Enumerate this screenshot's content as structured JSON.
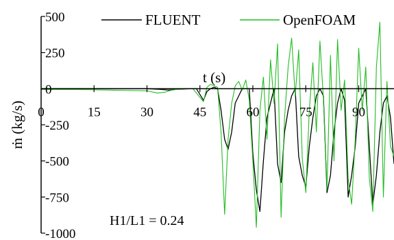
{
  "chart_data": {
    "type": "line",
    "title": "",
    "xlabel": "t (s)",
    "ylabel": "ṁ (kg/s)",
    "xlim": [
      0,
      100
    ],
    "ylim": [
      -1000,
      500
    ],
    "x_ticks": [
      0,
      15,
      30,
      45,
      60,
      75,
      90
    ],
    "x_tick_labels": [
      "0",
      "15",
      "30",
      "45",
      "60",
      "75",
      "90"
    ],
    "y_ticks": [
      500,
      250,
      0,
      -250,
      -500,
      -750,
      -1000
    ],
    "y_tick_labels": [
      "500",
      "250",
      "0",
      "-250",
      "-500",
      "-750",
      "-1000"
    ],
    "grid": false,
    "legend_position": "top",
    "annotation": "H1/L1 = 0.24",
    "series": [
      {
        "name": "FLUENT",
        "color": "#000000",
        "x": [
          0,
          10,
          20,
          30,
          34,
          36,
          38,
          42,
          44,
          45,
          46,
          47,
          48,
          49,
          50,
          51,
          52,
          53,
          54,
          55,
          56,
          57,
          58,
          59,
          60,
          61,
          62,
          63,
          64,
          65,
          66,
          67,
          68,
          69,
          70,
          71,
          72,
          73,
          74,
          75,
          76,
          77,
          78,
          79,
          80,
          81,
          82,
          83,
          84,
          85,
          86,
          87,
          88,
          89,
          90,
          91,
          92,
          93,
          94,
          95,
          96,
          97,
          98,
          99,
          100
        ],
        "y": [
          0,
          0,
          0,
          0,
          -5,
          -10,
          -5,
          0,
          0,
          -40,
          -80,
          -20,
          0,
          10,
          0,
          -150,
          -350,
          -420,
          -300,
          -100,
          -50,
          0,
          0,
          0,
          -450,
          -700,
          -850,
          -500,
          -200,
          -100,
          0,
          -520,
          -650,
          -300,
          -150,
          -50,
          0,
          -470,
          -600,
          -680,
          -400,
          -200,
          -50,
          0,
          -50,
          -720,
          -600,
          -300,
          -100,
          0,
          -80,
          -750,
          -600,
          -400,
          -100,
          -50,
          0,
          -400,
          -800,
          -600,
          -300,
          -100,
          -50,
          -200,
          -520
        ]
      },
      {
        "name": "OpenFOAM",
        "color": "#22bb22",
        "x": [
          0,
          10,
          20,
          30,
          33,
          35,
          37,
          40,
          43,
          45,
          46,
          47,
          48,
          49,
          50,
          51,
          52,
          53,
          54,
          55,
          56,
          57,
          58,
          59,
          60,
          61,
          62,
          63,
          64,
          65,
          66,
          67,
          68,
          69,
          70,
          71,
          72,
          73,
          74,
          75,
          76,
          77,
          78,
          79,
          80,
          81,
          82,
          83,
          84,
          85,
          86,
          87,
          88,
          89,
          90,
          91,
          92,
          93,
          94,
          95,
          96,
          97,
          98,
          99,
          100
        ],
        "y": [
          -5,
          -5,
          -10,
          -15,
          -30,
          -25,
          -10,
          0,
          0,
          -60,
          -90,
          10,
          30,
          20,
          10,
          -300,
          -870,
          -350,
          -100,
          20,
          50,
          -10,
          60,
          -80,
          -500,
          -960,
          -150,
          80,
          -350,
          200,
          -100,
          310,
          -890,
          -200,
          150,
          350,
          -50,
          270,
          -480,
          -720,
          -150,
          180,
          -300,
          330,
          -70,
          -700,
          230,
          -500,
          340,
          -150,
          60,
          -620,
          -800,
          -350,
          280,
          -150,
          150,
          -620,
          -850,
          150,
          460,
          -750,
          50,
          -400,
          -470
        ]
      }
    ]
  }
}
